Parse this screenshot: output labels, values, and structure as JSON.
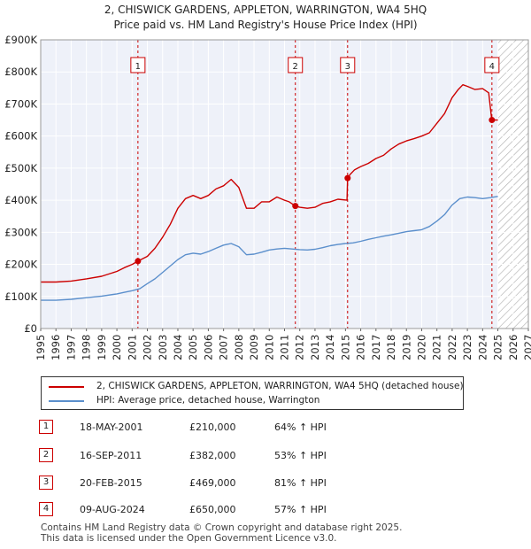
{
  "header": {
    "title": "2, CHISWICK GARDENS, APPLETON, WARRINGTON, WA4 5HQ",
    "subtitle": "Price paid vs. HM Land Registry's House Price Index (HPI)"
  },
  "colors": {
    "red": "#cc0000",
    "blue": "#5b8fcc",
    "grid": "#dddddd",
    "plot_bg": "#eef1f9"
  },
  "chart_data": {
    "type": "line",
    "title": "Price paid vs. HM Land Registry's House Price Index (HPI)",
    "xlabel": "",
    "ylabel": "",
    "xlim": [
      1995,
      2027
    ],
    "ylim": [
      0,
      900000
    ],
    "x_ticks": [
      "1995",
      "1996",
      "1997",
      "1998",
      "1999",
      "2000",
      "2001",
      "2002",
      "2003",
      "2004",
      "2005",
      "2006",
      "2007",
      "2008",
      "2009",
      "2010",
      "2011",
      "2012",
      "2013",
      "2014",
      "2015",
      "2016",
      "2017",
      "2018",
      "2019",
      "2020",
      "2021",
      "2022",
      "2023",
      "2024",
      "2025",
      "2026",
      "2027"
    ],
    "y_ticks": [
      {
        "value": 0,
        "label": "£0"
      },
      {
        "value": 100000,
        "label": "£100K"
      },
      {
        "value": 200000,
        "label": "£200K"
      },
      {
        "value": 300000,
        "label": "£300K"
      },
      {
        "value": 400000,
        "label": "£400K"
      },
      {
        "value": 500000,
        "label": "£500K"
      },
      {
        "value": 600000,
        "label": "£600K"
      },
      {
        "value": 700000,
        "label": "£700K"
      },
      {
        "value": 800000,
        "label": "£800K"
      },
      {
        "value": 900000,
        "label": "£900K"
      }
    ],
    "hatch_from": 2025.0,
    "series": [
      {
        "name": "2, CHISWICK GARDENS, APPLETON, WARRINGTON, WA4 5HQ (detached house)",
        "color": "#cc0000",
        "x": [
          1995,
          1996,
          1997,
          1998,
          1999,
          2000,
          2000.5,
          2001.0,
          2001.38,
          2002,
          2002.5,
          2003,
          2003.5,
          2004,
          2004.5,
          2005,
          2005.5,
          2006,
          2006.5,
          2007,
          2007.5,
          2008,
          2008.5,
          2009,
          2009.5,
          2010,
          2010.5,
          2011,
          2011.3,
          2011.71,
          2012,
          2012.5,
          2013,
          2013.5,
          2014,
          2014.5,
          2015.1,
          2015.14,
          2015.3,
          2015.6,
          2016,
          2016.5,
          2017,
          2017.5,
          2018,
          2018.5,
          2019,
          2019.5,
          2020,
          2020.5,
          2021,
          2021.5,
          2022,
          2022.4,
          2022.7,
          2023,
          2023.5,
          2024,
          2024.4,
          2024.6,
          2025.0
        ],
        "y": [
          145000,
          145000,
          148000,
          155000,
          163000,
          178000,
          190000,
          200000,
          210000,
          225000,
          250000,
          285000,
          325000,
          375000,
          405000,
          415000,
          405000,
          415000,
          435000,
          445000,
          465000,
          440000,
          375000,
          375000,
          395000,
          395000,
          410000,
          400000,
          395000,
          382000,
          378000,
          375000,
          378000,
          390000,
          395000,
          403000,
          400000,
          469000,
          480000,
          495000,
          505000,
          515000,
          530000,
          540000,
          560000,
          575000,
          585000,
          592000,
          600000,
          610000,
          640000,
          670000,
          720000,
          745000,
          760000,
          755000,
          745000,
          748000,
          735000,
          650000,
          650000
        ]
      },
      {
        "name": "HPI: Average price, detached house, Warrington",
        "color": "#5b8fcc",
        "x": [
          1995,
          1996,
          1997,
          1998,
          1999,
          2000,
          2000.5,
          2001,
          2001.5,
          2002,
          2002.5,
          2003,
          2003.5,
          2004,
          2004.5,
          2005,
          2005.5,
          2006,
          2006.5,
          2007,
          2007.5,
          2008,
          2008.5,
          2009,
          2009.5,
          2010,
          2010.5,
          2011,
          2011.5,
          2012,
          2012.5,
          2013,
          2013.5,
          2014,
          2014.5,
          2015,
          2015.5,
          2016,
          2016.5,
          2017,
          2017.5,
          2018,
          2018.5,
          2019,
          2019.5,
          2020,
          2020.5,
          2021,
          2021.5,
          2022,
          2022.5,
          2023,
          2023.5,
          2024,
          2024.5,
          2025.0
        ],
        "y": [
          88000,
          88000,
          91000,
          96000,
          101000,
          108000,
          113000,
          118000,
          124000,
          140000,
          155000,
          175000,
          195000,
          215000,
          230000,
          235000,
          232000,
          240000,
          250000,
          260000,
          265000,
          255000,
          230000,
          232000,
          238000,
          245000,
          248000,
          250000,
          248000,
          246000,
          245000,
          247000,
          252000,
          258000,
          262000,
          265000,
          267000,
          272000,
          278000,
          283000,
          288000,
          292000,
          297000,
          302000,
          305000,
          308000,
          318000,
          335000,
          355000,
          385000,
          405000,
          410000,
          408000,
          405000,
          408000,
          412000
        ]
      }
    ],
    "sales": [
      {
        "n": "1",
        "year": 2001.38,
        "price": 210000,
        "date": "18-MAY-2001",
        "price_label": "£210,000",
        "hpi": "64% ↑ HPI"
      },
      {
        "n": "2",
        "year": 2011.71,
        "price": 382000,
        "date": "16-SEP-2011",
        "price_label": "£382,000",
        "hpi": "53% ↑ HPI"
      },
      {
        "n": "3",
        "year": 2015.14,
        "price": 469000,
        "date": "20-FEB-2015",
        "price_label": "£469,000",
        "hpi": "81% ↑ HPI"
      },
      {
        "n": "4",
        "year": 2024.61,
        "price": 650000,
        "date": "09-AUG-2024",
        "price_label": "£650,000",
        "hpi": "57% ↑ HPI"
      }
    ]
  },
  "legend": {
    "red_label": "2, CHISWICK GARDENS, APPLETON, WARRINGTON, WA4 5HQ (detached house)",
    "blue_label": "HPI: Average price, detached house, Warrington"
  },
  "footer": {
    "line1": "Contains HM Land Registry data © Crown copyright and database right 2025.",
    "line2": "This data is licensed under the Open Government Licence v3.0."
  }
}
